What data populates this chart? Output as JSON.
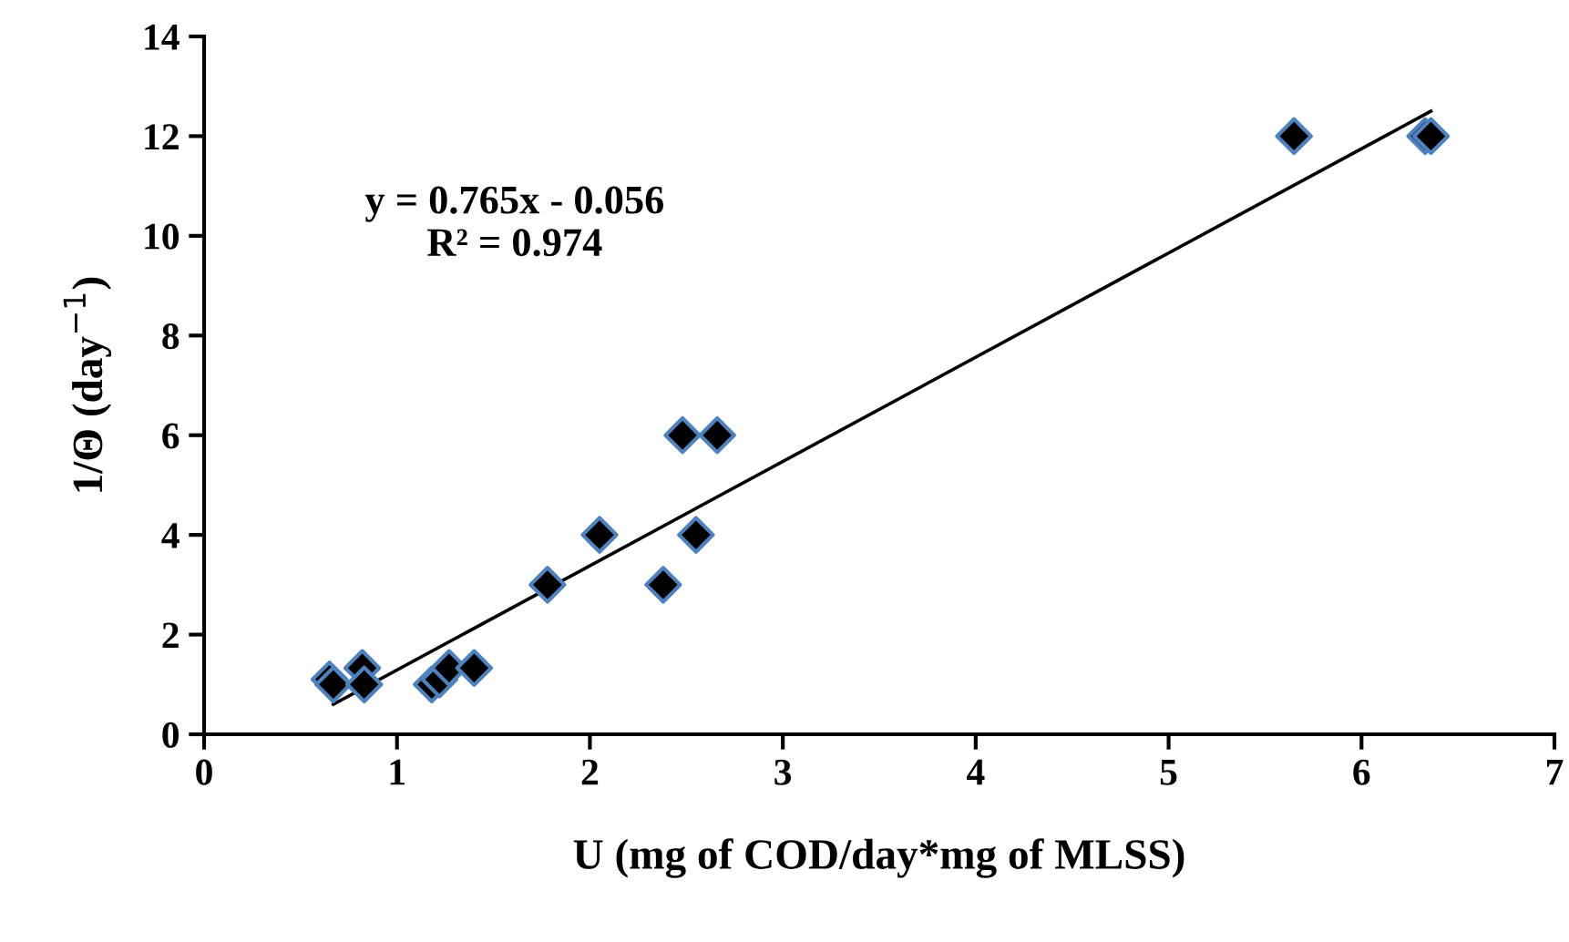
{
  "chart_data": {
    "type": "scatter",
    "xlabel": "U (mg of COD/day*mg of MLSS)",
    "ylabel": "1/Θ (day$^{−1}$)",
    "xlim": [
      0,
      7
    ],
    "ylim": [
      0,
      14
    ],
    "xticks": [
      0,
      1,
      2,
      3,
      4,
      5,
      6,
      7
    ],
    "yticks": [
      0,
      2,
      4,
      6,
      8,
      10,
      12,
      14
    ],
    "grid": false,
    "legend": false,
    "marker": "diamond",
    "annotations": [
      "y = 0.765x - 0.056\nR² = 0.974"
    ],
    "series": [
      {
        "color": "#000000",
        "x": [
          0.65,
          0.67,
          0.82,
          0.83,
          1.18,
          1.22,
          1.27,
          1.4,
          1.78,
          2.05,
          2.38,
          2.48,
          2.55,
          2.66,
          5.65,
          6.33,
          6.36
        ],
        "values": [
          1.1,
          1.0,
          1.33,
          1.0,
          1.0,
          1.1,
          1.33,
          1.33,
          3,
          4,
          3,
          6,
          4,
          6,
          12,
          12,
          12
        ]
      },
      {
        "type": "line",
        "color": "#000000",
        "marker": "none",
        "line_style": "solid",
        "x": [
          0.67,
          6.36
        ],
        "values": [
          0.6,
          12.5
        ]
      }
    ]
  }
}
